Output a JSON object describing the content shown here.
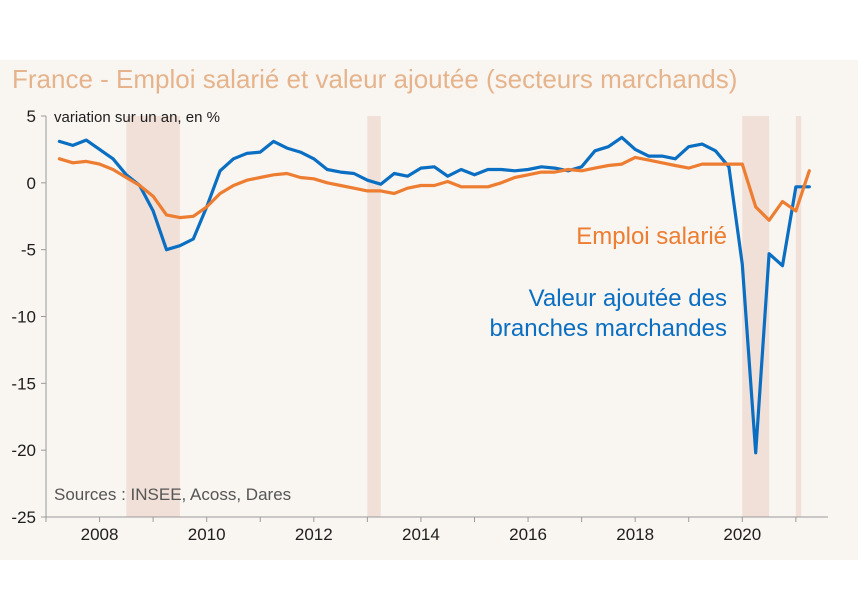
{
  "chart_data": {
    "type": "line",
    "title": "France - Emploi salarié et valeur ajoutée (secteurs marchands)",
    "ylabel": "variation sur un an, en %",
    "source": "Sources : INSEE, Acoss, Dares",
    "ylim": [
      -25,
      5
    ],
    "yticks": [
      5,
      0,
      -5,
      -10,
      -15,
      -20,
      -25
    ],
    "xlim": [
      2007.0,
      2021.6
    ],
    "xticks": [
      2008,
      2010,
      2012,
      2014,
      2016,
      2018,
      2020
    ],
    "grid": false,
    "colors": {
      "plot_background": "#f9f5f1",
      "recession_band": "#f0e0d8",
      "emploi": "#ed7d31",
      "valeur": "#0a6fc2",
      "title": "#e6b48c"
    },
    "recession_periods": [
      {
        "start": 2008.5,
        "end": 2009.5
      },
      {
        "start": 2013.0,
        "end": 2013.25
      },
      {
        "start": 2020.0,
        "end": 2020.5
      },
      {
        "start": 2021.0,
        "end": 2021.1
      }
    ],
    "series": [
      {
        "name": "Emploi salarié",
        "label_lines": [
          "Emploi salarié"
        ],
        "color": "#ed7d31",
        "x": [
          2007.25,
          2007.5,
          2007.75,
          2008.0,
          2008.25,
          2008.5,
          2008.75,
          2009.0,
          2009.25,
          2009.5,
          2009.75,
          2010.0,
          2010.25,
          2010.5,
          2010.75,
          2011.0,
          2011.25,
          2011.5,
          2011.75,
          2012.0,
          2012.25,
          2012.5,
          2012.75,
          2013.0,
          2013.25,
          2013.5,
          2013.75,
          2014.0,
          2014.25,
          2014.5,
          2014.75,
          2015.0,
          2015.25,
          2015.5,
          2015.75,
          2016.0,
          2016.25,
          2016.5,
          2016.75,
          2017.0,
          2017.25,
          2017.5,
          2017.75,
          2018.0,
          2018.25,
          2018.5,
          2018.75,
          2019.0,
          2019.25,
          2019.5,
          2019.75,
          2020.0,
          2020.25,
          2020.5,
          2020.75,
          2021.0,
          2021.25
        ],
        "y": [
          1.8,
          1.5,
          1.6,
          1.4,
          1.0,
          0.4,
          -0.2,
          -1.0,
          -2.4,
          -2.6,
          -2.5,
          -1.8,
          -0.8,
          -0.2,
          0.2,
          0.4,
          0.6,
          0.7,
          0.4,
          0.3,
          0.0,
          -0.2,
          -0.4,
          -0.6,
          -0.6,
          -0.8,
          -0.4,
          -0.2,
          -0.2,
          0.1,
          -0.3,
          -0.3,
          -0.3,
          0.0,
          0.4,
          0.6,
          0.8,
          0.8,
          1.0,
          0.9,
          1.1,
          1.3,
          1.4,
          1.9,
          1.7,
          1.5,
          1.3,
          1.1,
          1.4,
          1.4,
          1.4,
          1.4,
          -1.8,
          -2.8,
          -1.4,
          -2.1,
          0.9
        ]
      },
      {
        "name": "Valeur ajoutée des branches marchandes",
        "label_lines": [
          "Valeur ajoutée des",
          "branches marchandes"
        ],
        "color": "#0a6fc2",
        "x": [
          2007.25,
          2007.5,
          2007.75,
          2008.0,
          2008.25,
          2008.5,
          2008.75,
          2009.0,
          2009.25,
          2009.5,
          2009.75,
          2010.0,
          2010.25,
          2010.5,
          2010.75,
          2011.0,
          2011.25,
          2011.5,
          2011.75,
          2012.0,
          2012.25,
          2012.5,
          2012.75,
          2013.0,
          2013.25,
          2013.5,
          2013.75,
          2014.0,
          2014.25,
          2014.5,
          2014.75,
          2015.0,
          2015.25,
          2015.5,
          2015.75,
          2016.0,
          2016.25,
          2016.5,
          2016.75,
          2017.0,
          2017.25,
          2017.5,
          2017.75,
          2018.0,
          2018.25,
          2018.5,
          2018.75,
          2019.0,
          2019.25,
          2019.5,
          2019.75,
          2020.0,
          2020.25,
          2020.5,
          2020.75,
          2021.0,
          2021.25
        ],
        "y": [
          3.1,
          2.8,
          3.2,
          2.5,
          1.8,
          0.6,
          -0.2,
          -2.1,
          -5.0,
          -4.7,
          -4.2,
          -1.8,
          0.9,
          1.8,
          2.2,
          2.3,
          3.1,
          2.6,
          2.3,
          1.8,
          1.0,
          0.8,
          0.7,
          0.2,
          -0.1,
          0.7,
          0.5,
          1.1,
          1.2,
          0.5,
          1.0,
          0.6,
          1.0,
          1.0,
          0.9,
          1.0,
          1.2,
          1.1,
          0.9,
          1.2,
          2.4,
          2.7,
          3.4,
          2.5,
          2.0,
          2.0,
          1.8,
          2.7,
          2.9,
          2.4,
          1.2,
          -6.1,
          -20.2,
          -5.3,
          -6.2,
          -0.3,
          -0.3
        ]
      }
    ]
  }
}
